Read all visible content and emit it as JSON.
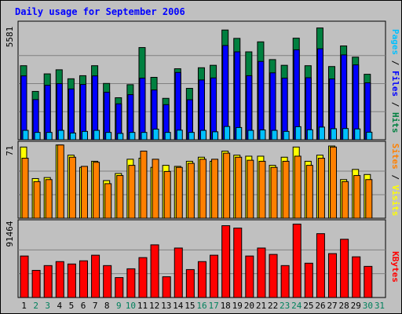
{
  "chart_data": {
    "type": "bar",
    "title": "Daily usage for September 2006",
    "categories": [
      "1",
      "2",
      "3",
      "4",
      "5",
      "6",
      "7",
      "8",
      "9",
      "10",
      "11",
      "12",
      "13",
      "14",
      "15",
      "16",
      "17",
      "18",
      "19",
      "20",
      "21",
      "22",
      "23",
      "24",
      "25",
      "26",
      "27",
      "28",
      "29",
      "30",
      "31"
    ],
    "weekend_days": [
      "2",
      "3",
      "9",
      "10",
      "16",
      "17",
      "23",
      "24",
      "30",
      "31"
    ],
    "colors": {
      "background": "#c0c0c0",
      "frame": "#000000",
      "title": "#0000ff",
      "hits": "#008040",
      "files": "#0000ff",
      "pages": "#00c0ff",
      "visits": "#ffff00",
      "sites": "#ff8000",
      "kbytes": "#ff0000",
      "weekday_label": "#000000",
      "weekend_label": "#00805c",
      "grid": "#808080"
    },
    "panels": [
      {
        "name": "hits-files-pages",
        "ymax_label": "5581",
        "ylim": [
          0,
          5581
        ],
        "side_label": [
          {
            "text": "Pages",
            "color": "#00c0ff"
          },
          {
            "text": " / ",
            "color": "#000000"
          },
          {
            "text": "Files",
            "color": "#0000ff"
          },
          {
            "text": " / ",
            "color": "#000000"
          },
          {
            "text": "Hits",
            "color": "#008040"
          }
        ],
        "series": [
          {
            "name": "Hits",
            "color": "#008040",
            "values": [
              3630,
              2370,
              3230,
              3430,
              2990,
              3140,
              3630,
              2760,
              2060,
              2700,
              4520,
              3060,
              2030,
              3480,
              2520,
              3530,
              3650,
              5380,
              4970,
              4310,
              4800,
              3930,
              3650,
              4980,
              3630,
              5480,
              3590,
              4600,
              4050,
              3210
            ]
          },
          {
            "name": "Files",
            "color": "#0000ff",
            "values": [
              3130,
              1970,
              2670,
              2750,
              2490,
              2710,
              3130,
              2330,
              1760,
              2210,
              3020,
              2440,
              1720,
              3300,
              1960,
              2930,
              3030,
              4620,
              4310,
              3140,
              3840,
              3280,
              3020,
              4410,
              3040,
              4460,
              2980,
              4160,
              3670,
              2790
            ]
          },
          {
            "name": "Pages",
            "color": "#00c0ff",
            "values": [
              460,
              360,
              360,
              460,
              330,
              410,
              460,
              360,
              310,
              360,
              360,
              520,
              360,
              470,
              360,
              460,
              390,
              650,
              600,
              460,
              480,
              460,
              410,
              640,
              490,
              620,
              540,
              550,
              530,
              370
            ]
          }
        ]
      },
      {
        "name": "sites-visits",
        "ymax_label": "71",
        "ylim": [
          0,
          71
        ],
        "side_label": [
          {
            "text": "Sites",
            "color": "#ff8000"
          },
          {
            "text": " / ",
            "color": "#000000"
          },
          {
            "text": "Visits",
            "color": "#ffff00"
          }
        ],
        "series": [
          {
            "name": "Visits",
            "color": "#ffff00",
            "values": [
              70,
              39,
              40,
              72,
              62,
              50,
              56,
              37,
              44,
              58,
              59,
              50,
              52,
              51,
              56,
              60,
              56,
              66,
              62,
              61,
              61,
              52,
              60,
              70,
              56,
              62,
              71,
              38,
              48,
              43
            ]
          },
          {
            "name": "Sites",
            "color": "#ff8000",
            "values": [
              59,
              36,
              38,
              72,
              60,
              51,
              55,
              34,
              42,
              52,
              66,
              58,
              46,
              50,
              54,
              58,
              58,
              64,
              60,
              57,
              56,
              50,
              56,
              61,
              52,
              59,
              70,
              36,
              42,
              38
            ]
          }
        ]
      },
      {
        "name": "kbytes",
        "ymax_label": "91464",
        "ylim": [
          0,
          91464
        ],
        "side_label": [
          {
            "text": "KBytes",
            "color": "#ff0000"
          }
        ],
        "series": [
          {
            "name": "KBytes",
            "color": "#ff0000",
            "values": [
              52000,
              34000,
              40000,
              45000,
              42000,
              46000,
              53000,
              40000,
              25000,
              36000,
              50000,
              66000,
              26000,
              62000,
              35000,
              45000,
              53000,
              90000,
              87000,
              52000,
              62000,
              54000,
              40000,
              92000,
              43000,
              80000,
              55000,
              73000,
              51000,
              39000
            ]
          }
        ]
      }
    ]
  }
}
